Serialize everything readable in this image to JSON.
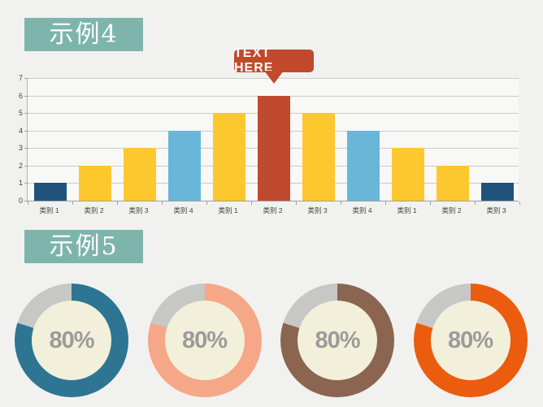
{
  "sections": [
    {
      "title": "示例4"
    },
    {
      "title": "示例5"
    }
  ],
  "callout": {
    "label": "TEXT HERE"
  },
  "colors": {
    "page_bg": "#f1f1f0",
    "header_bg": "#7db5ac",
    "header_text": "#ffffff",
    "callout_bg": "#c1492c",
    "callout_text": "#ffffff",
    "plot_bg": "#f8f8f7",
    "gridline": "#cbcbcb",
    "axis": "#9f9f9f",
    "axis_text": "#3f3f3f"
  },
  "chart_data": [
    {
      "type": "bar",
      "title": "示例4",
      "categories": [
        "类别 1",
        "类别 2",
        "类别 3",
        "类别 4",
        "类别 1",
        "类别 2",
        "类别 3",
        "类别 4",
        "类别 1",
        "类别 2",
        "类别 3"
      ],
      "values": [
        1,
        2,
        3,
        4,
        5,
        6,
        5,
        4,
        3,
        2,
        1
      ],
      "bar_colors": [
        "#1f537b",
        "#fdc72e",
        "#fdc72e",
        "#68b7d9",
        "#fdc72e",
        "#bf4a2f",
        "#fdc72e",
        "#68b7d9",
        "#fdc72e",
        "#fdc72e",
        "#1f537b"
      ],
      "xlabel": "",
      "ylabel": "",
      "ylim": [
        0,
        7
      ],
      "yticks": [
        0,
        1,
        2,
        3,
        4,
        5,
        6,
        7
      ],
      "grid": true,
      "legend": "none",
      "annotation": {
        "text": "TEXT HERE",
        "category_index": 5,
        "value": 6
      }
    },
    {
      "type": "pie",
      "subtype": "donut",
      "label": "80%",
      "values": [
        80,
        20
      ],
      "colors": [
        "#2d7593",
        "#c7c7c6"
      ],
      "inner_color": "#f2f0da",
      "label_color": "#9b9b9b"
    },
    {
      "type": "pie",
      "subtype": "donut",
      "label": "80%",
      "values": [
        80,
        20
      ],
      "colors": [
        "#f5a788",
        "#c7c7c6"
      ],
      "inner_color": "#f2f0da",
      "label_color": "#9b9b9b"
    },
    {
      "type": "pie",
      "subtype": "donut",
      "label": "80%",
      "values": [
        80,
        20
      ],
      "colors": [
        "#8b6550",
        "#c7c7c6"
      ],
      "inner_color": "#f2f0da",
      "label_color": "#9b9b9b"
    },
    {
      "type": "pie",
      "subtype": "donut",
      "label": "80%",
      "values": [
        80,
        20
      ],
      "colors": [
        "#eb5c0e",
        "#c7c7c6"
      ],
      "inner_color": "#f2f0da",
      "label_color": "#9b9b9b"
    }
  ]
}
